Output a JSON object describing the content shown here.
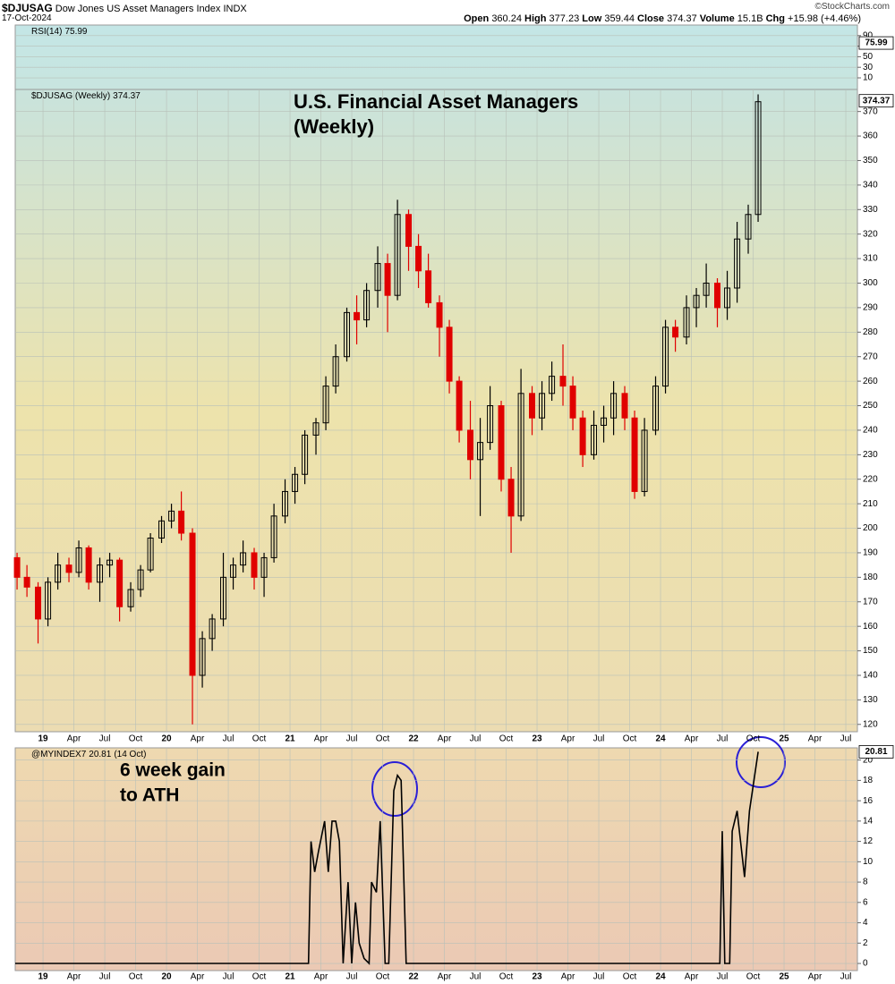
{
  "header": {
    "symbol": "$DJUSAG",
    "name": "Dow Jones US Asset Managers Index",
    "exchange": "INDX",
    "date": "17-Oct-2024",
    "open_label": "Open",
    "open": "360.24",
    "high_label": "High",
    "high": "377.23",
    "low_label": "Low",
    "low": "359.44",
    "close_label": "Close",
    "close": "374.37",
    "volume_label": "Volume",
    "volume": "15.1B",
    "chg_label": "Chg",
    "chg": "+15.98 (+4.46%)",
    "source": "©StockCharts.com"
  },
  "chart_data": [
    {
      "type": "rsi",
      "legend": "RSI(14)",
      "value": 75.99,
      "ylim": [
        -12,
        110
      ],
      "yticks": [
        10,
        30,
        50,
        70,
        90
      ]
    },
    {
      "type": "candlestick",
      "legend": "$DJUSAG (Weekly)",
      "last_value": 374.37,
      "title_lines": [
        "U.S. Financial Asset Managers",
        "(Weekly)"
      ],
      "up_color": "#000000",
      "down_color": "#e00000",
      "grid": true,
      "xlim": [
        2018.775,
        2025.594
      ],
      "ylim": [
        117,
        379
      ],
      "yticks": [
        120,
        130,
        140,
        150,
        160,
        170,
        180,
        190,
        200,
        210,
        220,
        230,
        240,
        250,
        260,
        270,
        280,
        290,
        300,
        310,
        320,
        330,
        340,
        350,
        360,
        370
      ],
      "xticks": [
        {
          "value": 2019,
          "label": "19"
        },
        {
          "value": 2019.25,
          "label": "Apr"
        },
        {
          "value": 2019.5,
          "label": "Jul"
        },
        {
          "value": 2019.75,
          "label": "Oct"
        },
        {
          "value": 2020,
          "label": "20"
        },
        {
          "value": 2020.25,
          "label": "Apr"
        },
        {
          "value": 2020.5,
          "label": "Jul"
        },
        {
          "value": 2020.75,
          "label": "Oct"
        },
        {
          "value": 2021,
          "label": "21"
        },
        {
          "value": 2021.25,
          "label": "Apr"
        },
        {
          "value": 2021.5,
          "label": "Jul"
        },
        {
          "value": 2021.75,
          "label": "Oct"
        },
        {
          "value": 2022,
          "label": "22"
        },
        {
          "value": 2022.25,
          "label": "Apr"
        },
        {
          "value": 2022.5,
          "label": "Jul"
        },
        {
          "value": 2022.75,
          "label": "Oct"
        },
        {
          "value": 2023,
          "label": "23"
        },
        {
          "value": 2023.25,
          "label": "Apr"
        },
        {
          "value": 2023.5,
          "label": "Jul"
        },
        {
          "value": 2023.75,
          "label": "Oct"
        },
        {
          "value": 2024,
          "label": "24"
        },
        {
          "value": 2024.25,
          "label": "Apr"
        },
        {
          "value": 2024.5,
          "label": "Jul"
        },
        {
          "value": 2024.75,
          "label": "Oct"
        },
        {
          "value": 2025,
          "label": "25"
        },
        {
          "value": 2025.25,
          "label": "Apr"
        },
        {
          "value": 2025.5,
          "label": "Jul"
        }
      ],
      "x": [
        2018.79,
        2018.87,
        2018.96,
        2019.04,
        2019.12,
        2019.21,
        2019.29,
        2019.37,
        2019.46,
        2019.54,
        2019.62,
        2019.71,
        2019.79,
        2019.87,
        2019.96,
        2020.04,
        2020.12,
        2020.21,
        2020.29,
        2020.37,
        2020.46,
        2020.54,
        2020.62,
        2020.71,
        2020.79,
        2020.87,
        2020.96,
        2021.04,
        2021.12,
        2021.21,
        2021.29,
        2021.37,
        2021.46,
        2021.54,
        2021.62,
        2021.71,
        2021.79,
        2021.87,
        2021.96,
        2022.04,
        2022.12,
        2022.21,
        2022.29,
        2022.37,
        2022.46,
        2022.54,
        2022.62,
        2022.71,
        2022.79,
        2022.87,
        2022.96,
        2023.04,
        2023.12,
        2023.21,
        2023.29,
        2023.37,
        2023.46,
        2023.54,
        2023.62,
        2023.71,
        2023.79,
        2023.87,
        2023.96,
        2024.04,
        2024.12,
        2024.21,
        2024.29,
        2024.37,
        2024.46,
        2024.54,
        2024.62,
        2024.71,
        2024.79
      ],
      "open": [
        188,
        180,
        176,
        163,
        178,
        185,
        182,
        192,
        178,
        185,
        187,
        168,
        175,
        183,
        196,
        203,
        207,
        198,
        140,
        155,
        163,
        180,
        185,
        190,
        180,
        188,
        205,
        215,
        222,
        238,
        243,
        258,
        270,
        288,
        285,
        297,
        308,
        295,
        328,
        315,
        305,
        292,
        282,
        260,
        240,
        228,
        235,
        250,
        220,
        205,
        255,
        245,
        255,
        262,
        258,
        245,
        230,
        242,
        245,
        255,
        245,
        215,
        240,
        258,
        282,
        278,
        290,
        295,
        300,
        290,
        298,
        318,
        328
      ],
      "high": [
        190,
        185,
        178,
        180,
        190,
        188,
        195,
        193,
        188,
        190,
        188,
        178,
        185,
        198,
        205,
        210,
        215,
        200,
        158,
        165,
        190,
        188,
        195,
        192,
        190,
        210,
        220,
        225,
        240,
        245,
        262,
        275,
        290,
        295,
        300,
        315,
        312,
        334,
        330,
        320,
        312,
        295,
        285,
        262,
        252,
        245,
        258,
        252,
        225,
        265,
        258,
        260,
        268,
        275,
        262,
        248,
        248,
        250,
        260,
        258,
        248,
        245,
        262,
        285,
        285,
        295,
        298,
        308,
        302,
        305,
        325,
        332,
        377
      ],
      "low": [
        175,
        172,
        153,
        160,
        175,
        178,
        180,
        175,
        170,
        180,
        162,
        166,
        172,
        182,
        194,
        200,
        195,
        120,
        135,
        150,
        160,
        175,
        182,
        175,
        172,
        186,
        202,
        210,
        218,
        230,
        240,
        255,
        268,
        275,
        282,
        290,
        280,
        293,
        305,
        298,
        290,
        270,
        255,
        235,
        220,
        205,
        232,
        215,
        190,
        203,
        238,
        240,
        252,
        250,
        240,
        225,
        228,
        235,
        238,
        240,
        212,
        213,
        238,
        255,
        272,
        275,
        282,
        290,
        282,
        285,
        292,
        312,
        325
      ],
      "close": [
        180,
        176,
        163,
        178,
        185,
        182,
        192,
        178,
        185,
        187,
        168,
        175,
        183,
        196,
        203,
        207,
        198,
        140,
        155,
        163,
        180,
        185,
        190,
        180,
        188,
        205,
        215,
        222,
        238,
        243,
        258,
        270,
        288,
        285,
        297,
        308,
        295,
        328,
        315,
        305,
        292,
        282,
        260,
        240,
        228,
        235,
        250,
        220,
        205,
        255,
        245,
        255,
        262,
        258,
        245,
        230,
        242,
        245,
        255,
        245,
        215,
        240,
        258,
        282,
        278,
        290,
        295,
        300,
        290,
        298,
        318,
        328,
        374
      ]
    },
    {
      "type": "line",
      "legend": "@MYINDEX7",
      "last_value": 20.81,
      "legend_date": "(14 Oct)",
      "color": "#000000",
      "grid": true,
      "annotation_lines": [
        "6 week gain",
        "to ATH"
      ],
      "annotation_color": "#2a1fd6",
      "xlim": [
        2018.775,
        2025.594
      ],
      "ylim": [
        -0.7,
        21.2
      ],
      "yticks": [
        0,
        2,
        4,
        6,
        8,
        10,
        12,
        14,
        16,
        18,
        20
      ],
      "xticks": [
        {
          "value": 2019,
          "label": "19"
        },
        {
          "value": 2019.25,
          "label": "Apr"
        },
        {
          "value": 2019.5,
          "label": "Jul"
        },
        {
          "value": 2019.75,
          "label": "Oct"
        },
        {
          "value": 2020,
          "label": "20"
        },
        {
          "value": 2020.25,
          "label": "Apr"
        },
        {
          "value": 2020.5,
          "label": "Jul"
        },
        {
          "value": 2020.75,
          "label": "Oct"
        },
        {
          "value": 2021,
          "label": "21"
        },
        {
          "value": 2021.25,
          "label": "Apr"
        },
        {
          "value": 2021.5,
          "label": "Jul"
        },
        {
          "value": 2021.75,
          "label": "Oct"
        },
        {
          "value": 2022,
          "label": "22"
        },
        {
          "value": 2022.25,
          "label": "Apr"
        },
        {
          "value": 2022.5,
          "label": "Jul"
        },
        {
          "value": 2022.75,
          "label": "Oct"
        },
        {
          "value": 2023,
          "label": "23"
        },
        {
          "value": 2023.25,
          "label": "Apr"
        },
        {
          "value": 2023.5,
          "label": "Jul"
        },
        {
          "value": 2023.75,
          "label": "Oct"
        },
        {
          "value": 2024,
          "label": "24"
        },
        {
          "value": 2024.25,
          "label": "Apr"
        },
        {
          "value": 2024.5,
          "label": "Jul"
        },
        {
          "value": 2024.75,
          "label": "Oct"
        },
        {
          "value": 2025,
          "label": "25"
        },
        {
          "value": 2025.25,
          "label": "Apr"
        },
        {
          "value": 2025.5,
          "label": "Jul"
        }
      ],
      "x": [
        2018.775,
        2021.15,
        2021.17,
        2021.2,
        2021.23,
        2021.28,
        2021.31,
        2021.34,
        2021.37,
        2021.4,
        2021.43,
        2021.47,
        2021.5,
        2021.53,
        2021.56,
        2021.6,
        2021.64,
        2021.66,
        2021.7,
        2021.73,
        2021.77,
        2021.8,
        2021.84,
        2021.87,
        2021.9,
        2021.94,
        2024.48,
        2024.5,
        2024.52,
        2024.56,
        2024.58,
        2024.62,
        2024.68,
        2024.72,
        2024.79
      ],
      "values": [
        0,
        0,
        12,
        9,
        11,
        14,
        9,
        14,
        14,
        12,
        0,
        8,
        0,
        6,
        2,
        0.5,
        0,
        8,
        7,
        14,
        0,
        0,
        17,
        18.5,
        18,
        0,
        0,
        13,
        0,
        0,
        13,
        15,
        8.5,
        15,
        20.81
      ]
    }
  ]
}
